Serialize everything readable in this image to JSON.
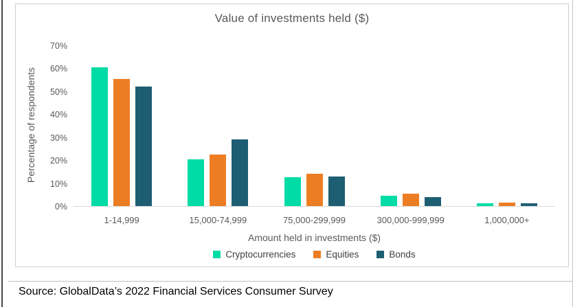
{
  "figure": {
    "source": "Source: GlobalData’s 2022 Financial Services Consumer Survey"
  },
  "chart_data": {
    "type": "bar",
    "title": "Value of investments held ($)",
    "xlabel": "Amount held in investments ($)",
    "ylabel": "Percentage of respondents",
    "categories": [
      "1-14,999",
      "15,000-74,999",
      "75,000-299,999",
      "300,000-999,999",
      "1,000,000+"
    ],
    "series": [
      {
        "name": "Cryptocurrencies",
        "color": "#00DCA5",
        "values": [
          60.5,
          20.5,
          12.5,
          4.5,
          1.2
        ]
      },
      {
        "name": "Equities",
        "color": "#ED7D23",
        "values": [
          55.5,
          22.5,
          14.0,
          5.5,
          1.5
        ]
      },
      {
        "name": "Bonds",
        "color": "#1E5E73",
        "values": [
          52.0,
          29.0,
          13.0,
          4.0,
          1.2
        ]
      }
    ],
    "ylim": [
      0,
      70
    ],
    "ytick_step": 10,
    "ytick_labels": [
      "0%",
      "10%",
      "20%",
      "30%",
      "40%",
      "50%",
      "60%",
      "70%"
    ],
    "grid": false,
    "legend_position": "bottom",
    "axis_line_color": "#d9d9d9",
    "text_color": "#595959"
  }
}
